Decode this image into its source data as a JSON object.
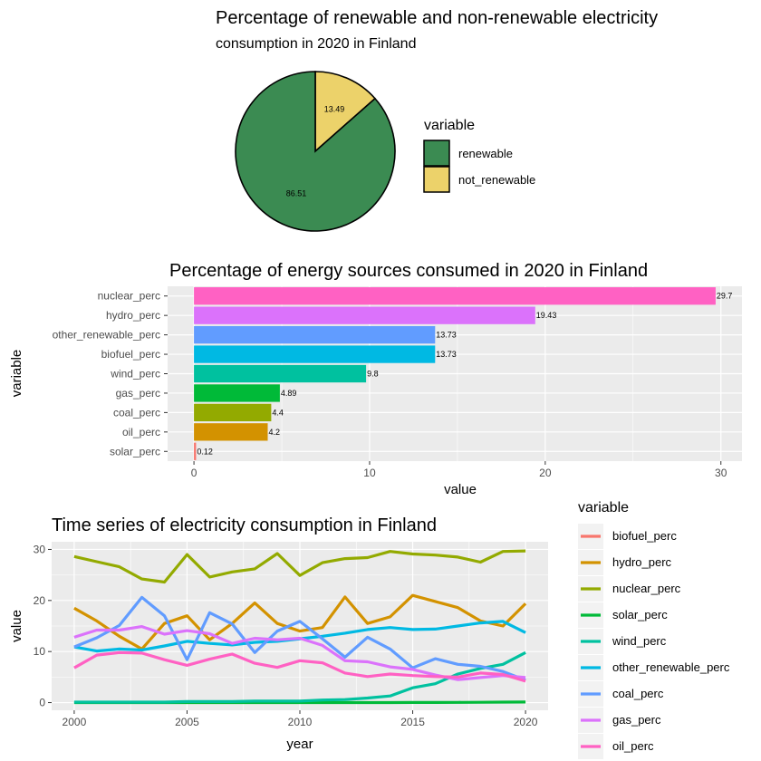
{
  "chart_data": [
    {
      "type": "pie",
      "title": "Percentage of renewable and non-renewable electricity",
      "subtitle": "consumption in 2020 in Finland",
      "legend_title": "variable",
      "legend_position": "right",
      "slices": [
        {
          "label": "renewable",
          "value": 86.51,
          "color": "#3b8b52"
        },
        {
          "label": "not_renewable",
          "value": 13.49,
          "color": "#ecd26a"
        }
      ]
    },
    {
      "type": "bar",
      "orientation": "horizontal",
      "title": "Percentage of energy sources consumed in 2020 in Finland",
      "xlabel": "value",
      "ylabel": "variable",
      "xlim": [
        -1.5,
        31.2
      ],
      "xticks": [
        "0",
        "10",
        "20",
        "30"
      ],
      "grid": true,
      "categories": [
        "nuclear_perc",
        "hydro_perc",
        "other_renewable_perc",
        "biofuel_perc",
        "wind_perc",
        "gas_perc",
        "coal_perc",
        "oil_perc",
        "solar_perc"
      ],
      "values": [
        29.7,
        19.43,
        13.73,
        13.73,
        9.8,
        4.89,
        4.4,
        4.2,
        0.12
      ],
      "value_labels": [
        "29.7",
        "19.43",
        "13.73",
        "13.73",
        "9.8",
        "4.89",
        "4.4",
        "4.2",
        "0.12"
      ],
      "colors": [
        "#ff61c3",
        "#db72fb",
        "#619cff",
        "#00b9e3",
        "#00c19f",
        "#00ba38",
        "#93aa00",
        "#d39200",
        "#f8766d"
      ]
    },
    {
      "type": "line",
      "title": "Time series of electricity consumption in Finland",
      "xlabel": "year",
      "ylabel": "value",
      "xlim": [
        1999,
        2021
      ],
      "ylim": [
        -1.5,
        31.5
      ],
      "xticks": [
        "2000",
        "2005",
        "2010",
        "2015",
        "2020"
      ],
      "yticks": [
        "0",
        "10",
        "20",
        "30"
      ],
      "grid": true,
      "legend_title": "variable",
      "legend_position": "right",
      "x": [
        2000,
        2001,
        2002,
        2003,
        2004,
        2005,
        2006,
        2007,
        2008,
        2009,
        2010,
        2011,
        2012,
        2013,
        2014,
        2015,
        2016,
        2017,
        2018,
        2019,
        2020
      ],
      "series": [
        {
          "name": "biofuel_perc",
          "color": "#f8766d",
          "values": [
            null,
            null,
            null,
            null,
            null,
            null,
            null,
            null,
            null,
            null,
            null,
            null,
            null,
            null,
            null,
            null,
            null,
            null,
            null,
            null,
            null
          ]
        },
        {
          "name": "hydro_perc",
          "color": "#d39200",
          "values": [
            18.5,
            16.0,
            13.0,
            10.5,
            15.5,
            17.0,
            12.3,
            15.5,
            19.5,
            15.5,
            14.0,
            14.7,
            20.7,
            15.5,
            16.8,
            21.0,
            19.8,
            18.6,
            16.0,
            15.0,
            19.4
          ]
        },
        {
          "name": "nuclear_perc",
          "color": "#93aa00",
          "values": [
            28.6,
            27.6,
            26.6,
            24.2,
            23.6,
            29.0,
            24.6,
            25.6,
            26.2,
            29.2,
            24.9,
            27.4,
            28.2,
            28.4,
            29.6,
            29.1,
            28.9,
            28.5,
            27.5,
            29.6,
            29.7
          ]
        },
        {
          "name": "solar_perc",
          "color": "#00ba38",
          "values": [
            0.0,
            0.0,
            0.0,
            0.0,
            0.0,
            0.0,
            0.0,
            0.01,
            0.01,
            0.01,
            0.01,
            0.01,
            0.01,
            0.01,
            0.01,
            0.02,
            0.03,
            0.05,
            0.07,
            0.1,
            0.12
          ]
        },
        {
          "name": "wind_perc",
          "color": "#00c19f",
          "values": [
            0.1,
            0.1,
            0.1,
            0.1,
            0.1,
            0.2,
            0.2,
            0.2,
            0.3,
            0.3,
            0.3,
            0.5,
            0.6,
            0.9,
            1.3,
            2.9,
            3.7,
            5.6,
            6.7,
            7.5,
            9.8
          ]
        },
        {
          "name": "other_renewable_perc",
          "color": "#00b9e3",
          "values": [
            10.9,
            10.1,
            10.5,
            10.3,
            11.1,
            12.0,
            11.6,
            11.3,
            11.8,
            12.0,
            12.5,
            13.0,
            13.6,
            14.3,
            14.7,
            14.3,
            14.4,
            15.0,
            15.6,
            15.9,
            13.7
          ]
        },
        {
          "name": "coal_perc",
          "color": "#619cff",
          "values": [
            10.9,
            12.7,
            15.1,
            20.6,
            17.0,
            8.4,
            17.6,
            15.4,
            9.8,
            14.0,
            15.9,
            12.5,
            8.9,
            12.8,
            10.5,
            6.8,
            8.6,
            7.5,
            7.1,
            6.1,
            4.4
          ]
        },
        {
          "name": "gas_perc",
          "color": "#db72fb",
          "values": [
            12.8,
            14.2,
            14.2,
            14.9,
            13.4,
            14.1,
            13.5,
            11.6,
            12.6,
            12.3,
            12.6,
            11.2,
            8.2,
            8.0,
            7.0,
            6.5,
            5.4,
            4.5,
            4.9,
            5.3,
            4.9
          ]
        },
        {
          "name": "oil_perc",
          "color": "#ff61c3",
          "values": [
            6.8,
            9.3,
            9.8,
            9.7,
            8.4,
            7.3,
            8.5,
            9.5,
            7.7,
            6.9,
            8.2,
            7.8,
            5.8,
            5.1,
            5.6,
            5.3,
            5.1,
            5.0,
            5.8,
            5.5,
            4.2
          ]
        }
      ]
    }
  ]
}
